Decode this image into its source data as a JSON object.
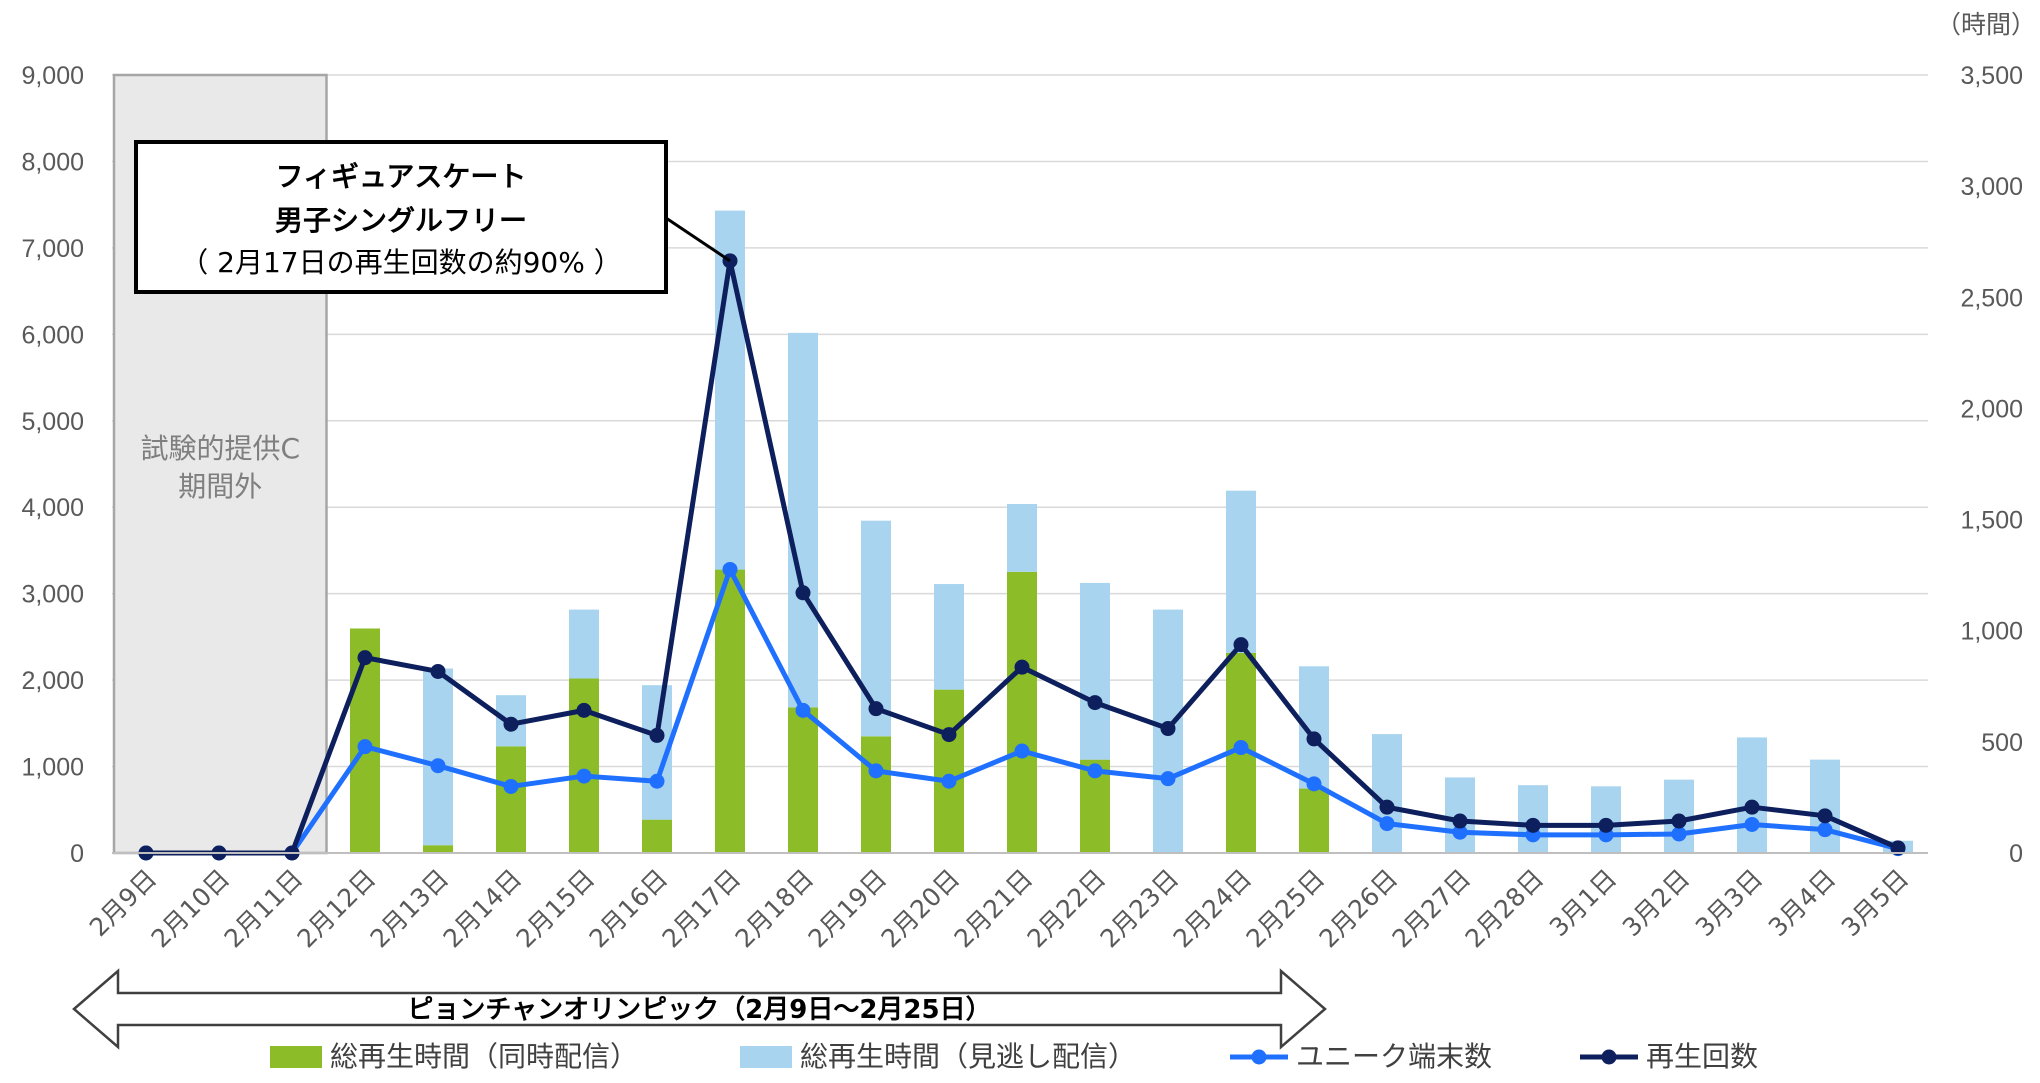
{
  "chart_data": {
    "type": "bar",
    "categories": [
      "2月9日",
      "2月10日",
      "2月11日",
      "2月12日",
      "2月13日",
      "2月14日",
      "2月15日",
      "2月16日",
      "2月17日",
      "2月18日",
      "2月19日",
      "2月20日",
      "2月21日",
      "2月22日",
      "2月23日",
      "2月24日",
      "2月25日",
      "2月26日",
      "2月27日",
      "2月28日",
      "3月1日",
      "3月2日",
      "3月3日",
      "3月4日",
      "3月5日"
    ],
    "y_left": {
      "ylim": [
        0,
        9000
      ],
      "ticks": [
        "0",
        "1,000",
        "2,000",
        "3,000",
        "4,000",
        "5,000",
        "6,000",
        "7,000",
        "8,000",
        "9,000"
      ]
    },
    "y_right": {
      "label": "（時間）",
      "ylim": [
        0,
        3500
      ],
      "ticks": [
        "0",
        "500",
        "1,000",
        "1,500",
        "2,000",
        "2,500",
        "3,000",
        "3,500"
      ]
    },
    "grid": true,
    "legend_position": "bottom",
    "series": [
      {
        "name": "総再生時間（同時配信）",
        "type": "bar",
        "axis": "right",
        "stacked": true,
        "color": "#8cbd28",
        "values": [
          0,
          0,
          0,
          1010,
          35,
          480,
          785,
          150,
          1275,
          655,
          525,
          735,
          1265,
          420,
          0,
          900,
          290,
          0,
          0,
          0,
          0,
          0,
          0,
          0,
          0
        ]
      },
      {
        "name": "総再生時間（見逃し配信）",
        "type": "bar",
        "axis": "right",
        "stacked": true,
        "color": "#a9d4ef",
        "values": [
          0,
          0,
          0,
          0,
          795,
          230,
          310,
          605,
          1615,
          1685,
          970,
          475,
          305,
          795,
          1095,
          730,
          550,
          535,
          340,
          305,
          300,
          330,
          520,
          420,
          55
        ]
      },
      {
        "name": "ユニーク端末数",
        "type": "line",
        "axis": "left",
        "color": "#1f70ff",
        "values": [
          0,
          0,
          0,
          1230,
          1010,
          770,
          890,
          830,
          3280,
          1650,
          950,
          830,
          1180,
          950,
          860,
          1220,
          800,
          340,
          240,
          210,
          210,
          220,
          330,
          270,
          50
        ]
      },
      {
        "name": "再生回数",
        "type": "line",
        "axis": "left",
        "color": "#0d1f5c",
        "values": [
          0,
          0,
          0,
          2260,
          2100,
          1490,
          1650,
          1360,
          6850,
          3010,
          1670,
          1370,
          2150,
          1740,
          1440,
          2410,
          1320,
          530,
          370,
          320,
          320,
          370,
          530,
          430,
          60
        ]
      }
    ],
    "annotations": {
      "shaded_region": {
        "line1": "試験的提供C",
        "line2": "期間外"
      },
      "callout": {
        "line1": "フィギュアスケート",
        "line2": "男子シングルフリー",
        "line3": "（ 2月17日の再生回数の約90% ）"
      },
      "period": "ピョンチャンオリンピック（2月9日～2月25日）"
    }
  }
}
